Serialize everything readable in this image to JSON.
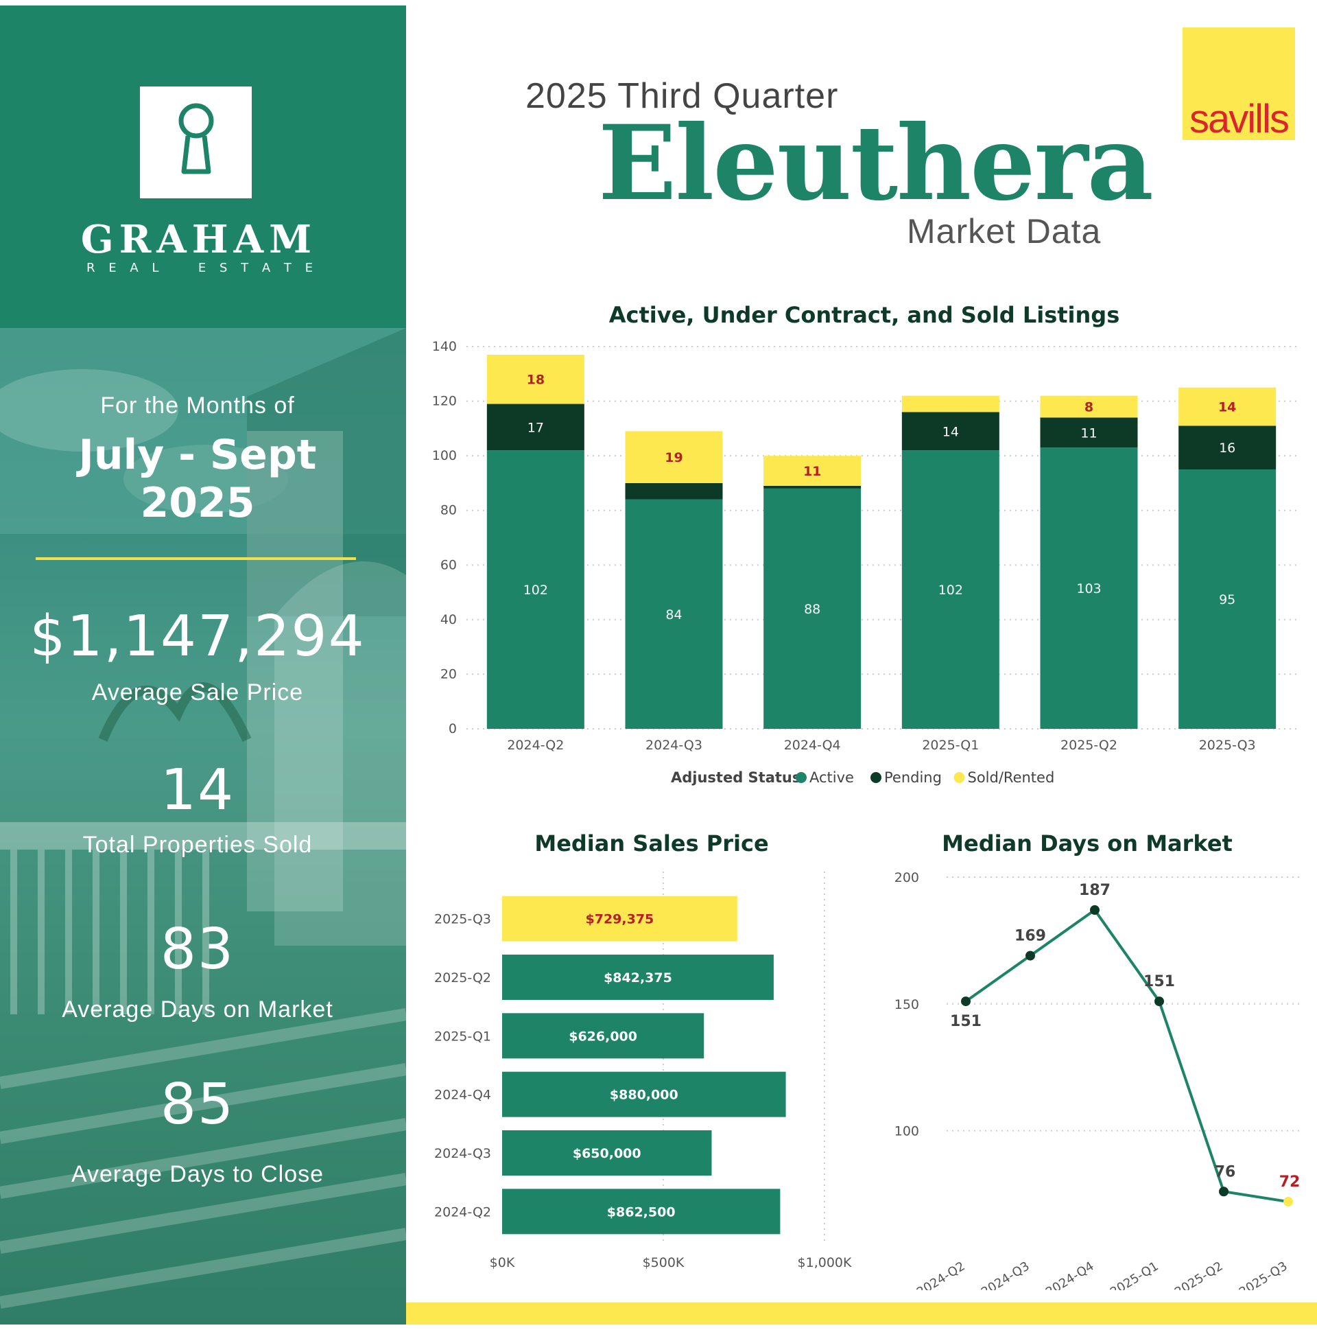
{
  "header": {
    "quarter": "2025 Third Quarter",
    "place": "Eleuthera",
    "subtitle": "Market Data",
    "partner_logo": "savills"
  },
  "brand": {
    "name": "GRAHAM",
    "sub_letters": [
      "R",
      "E",
      "A",
      "L",
      "E",
      "S",
      "T",
      "A",
      "T",
      "E"
    ]
  },
  "summary": {
    "months_label": "For the Months of",
    "period_line1": "July - Sept",
    "period_line2": "2025",
    "avg_sale_price": "$1,147,294",
    "avg_sale_price_label": "Average Sale Price",
    "total_sold": "14",
    "total_sold_label": "Total Properties Sold",
    "avg_dom": "83",
    "avg_dom_label": "Average Days on Market",
    "avg_dtc": "85",
    "avg_dtc_label": "Average Days to Close"
  },
  "colors": {
    "brand_green": "#1d8467",
    "pending_dark": "#0c3a27",
    "sold_yellow": "#fde94f",
    "highlight_red": "#b81f24"
  },
  "chart_data": [
    {
      "type": "bar",
      "stacked": true,
      "title": "Active, Under Contract, and Sold Listings",
      "legend_title": "Adjusted Status",
      "legend_position": "bottom",
      "categories": [
        "2024-Q2",
        "2024-Q3",
        "2024-Q4",
        "2025-Q1",
        "2025-Q2",
        "2025-Q3"
      ],
      "series": [
        {
          "name": "Active",
          "values": [
            102,
            84,
            88,
            102,
            103,
            95
          ],
          "labels": [
            "102",
            "84",
            "88",
            "102",
            "103",
            "95"
          ]
        },
        {
          "name": "Pending",
          "values": [
            17,
            6,
            1,
            14,
            11,
            16
          ],
          "labels": [
            "17",
            "",
            "",
            "14",
            "11",
            "16"
          ]
        },
        {
          "name": "Sold/Rented",
          "values": [
            18,
            19,
            11,
            6,
            8,
            14
          ],
          "labels": [
            "18",
            "19",
            "11",
            "",
            "8",
            "14"
          ]
        }
      ],
      "ylim": [
        0,
        140
      ],
      "yticks": [
        "0",
        "20",
        "40",
        "60",
        "80",
        "100",
        "120",
        "140"
      ],
      "grid": true
    },
    {
      "type": "bar",
      "orientation": "horizontal",
      "title": "Median Sales Price",
      "categories": [
        "2025-Q3",
        "2025-Q2",
        "2025-Q1",
        "2024-Q4",
        "2024-Q3",
        "2024-Q2"
      ],
      "values": [
        729375,
        842375,
        626000,
        880000,
        650000,
        862500
      ],
      "labels": [
        "$729,375",
        "$842,375",
        "$626,000",
        "$880,000",
        "$650,000",
        "$862,500"
      ],
      "xlim": [
        0,
        1000000
      ],
      "xticks": [
        "$0K",
        "$500K",
        "$1,000K"
      ],
      "highlight_index": 0
    },
    {
      "type": "line",
      "title": "Median Days on Market",
      "x": [
        "2024-Q2",
        "2024-Q3",
        "2024-Q4",
        "2025-Q1",
        "2025-Q2",
        "2025-Q3"
      ],
      "values": [
        151,
        169,
        187,
        151,
        76,
        72
      ],
      "labels": [
        "151",
        "169",
        "187",
        "151",
        "76",
        "72"
      ],
      "ylim": [
        62,
        200
      ],
      "yticks": [
        "100",
        "150",
        "200"
      ],
      "highlight_index": 5
    }
  ]
}
